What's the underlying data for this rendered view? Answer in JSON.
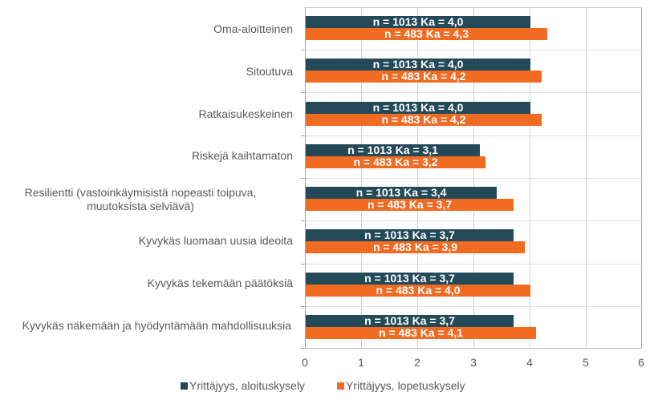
{
  "chart_data": {
    "type": "bar",
    "orientation": "horizontal",
    "title": "",
    "xlabel": "",
    "ylabel": "",
    "xlim": [
      0,
      6
    ],
    "x_ticks": [
      "0",
      "1",
      "2",
      "3",
      "4",
      "5",
      "6"
    ],
    "grid": true,
    "legend_position": "bottom",
    "categories": [
      "Oma-aloitteinen",
      "Sitoutuva",
      "Ratkaisukeskeinen",
      "Riskejä kaihtamaton",
      "Resilientti (vastoinkäymisistä nopeasti toipuva, muutoksista selviävä)",
      "Kyvykäs luomaan uusia ideoita",
      "Kyvykäs tekemään päätöksiä",
      "Kyvykäs näkemään ja hyödyntämään mahdollisuuksia"
    ],
    "series": [
      {
        "name": "Yrittäjyys, aloituskysely",
        "color": "#244a5a",
        "values": [
          4.0,
          4.0,
          4.0,
          3.1,
          3.4,
          3.7,
          3.7,
          3.7
        ],
        "labels": [
          "n = 1013 Ka = 4,0",
          "n = 1013 Ka = 4,0",
          "n = 1013 Ka = 4,0",
          "n = 1013 Ka = 3,1",
          "n = 1013 Ka = 3,4",
          "n = 1013 Ka = 3,7",
          "n = 1013 Ka = 3,7",
          "n = 1013 Ka = 3,7"
        ]
      },
      {
        "name": "Yrittäjyys, lopetuskysely",
        "color": "#f26b22",
        "values": [
          4.3,
          4.2,
          4.2,
          3.2,
          3.7,
          3.9,
          4.0,
          4.1
        ],
        "labels": [
          "n = 483 Ka = 4,3",
          "n = 483 Ka = 4,2",
          "n = 483 Ka = 4,2",
          "n = 483 Ka = 3,2",
          "n = 483 Ka = 3,7",
          "n = 483 Ka = 3,9",
          "n = 483 Ka = 4,0",
          "n = 483 Ka = 4,1"
        ]
      }
    ]
  },
  "labels": {
    "cat0": "Oma-aloitteinen",
    "cat1": "Sitoutuva",
    "cat2": "Ratkaisukeskeinen",
    "cat3": "Riskejä kaihtamaton",
    "cat4_line1": "Resilientti (vastoinkäymisistä nopeasti toipuva,",
    "cat4_line2": "muutoksista selviävä)",
    "cat5": "Kyvykäs luomaan uusia ideoita",
    "cat6": "Kyvykäs tekemään päätöksiä",
    "cat7": "Kyvykäs näkemään ja hyödyntämään mahdollisuuksia"
  },
  "legend": {
    "item1": "Yrittäjyys, aloituskysely",
    "item2": "Yrittäjyys, lopetuskysely"
  }
}
